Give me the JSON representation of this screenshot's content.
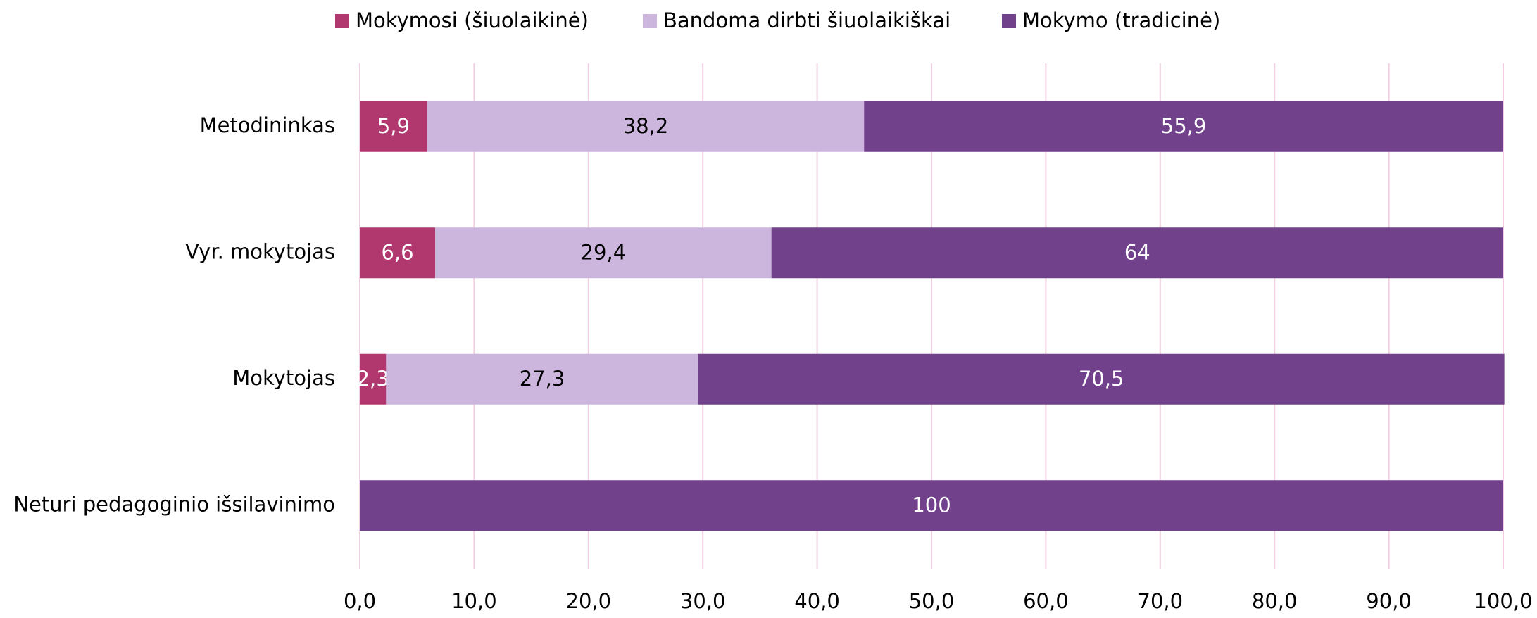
{
  "chart_data": {
    "type": "stacked_bar_horizontal",
    "categories": [
      "Metodininkas",
      "Vyr. mokytojas",
      "Mokytojas",
      "Neturi pedagoginio išsilavinimo"
    ],
    "series": [
      {
        "name": "Mokymosi (šiuolaikinė)",
        "color": "#b0386e",
        "label_color": "#ffffff",
        "values": [
          5.9,
          6.6,
          2.3,
          null
        ],
        "value_labels": [
          "5,9",
          "6,6",
          "2,3",
          null
        ]
      },
      {
        "name": "Bandoma dirbti šiuolaikiškai",
        "color": "#cdb6dd",
        "label_color": "#000000",
        "values": [
          38.2,
          29.4,
          27.3,
          null
        ],
        "value_labels": [
          "38,2",
          "29,4",
          "27,3",
          null
        ]
      },
      {
        "name": "Mokymo (tradicinė)",
        "color": "#71418c",
        "label_color": "#ffffff",
        "values": [
          55.9,
          64,
          70.5,
          100
        ],
        "value_labels": [
          "55,9",
          "64",
          "70,5",
          "100"
        ]
      }
    ],
    "xlim": [
      0,
      100
    ],
    "xticks": [
      {
        "value": 0,
        "label": "0,0"
      },
      {
        "value": 10,
        "label": "10,0"
      },
      {
        "value": 20,
        "label": "20,0"
      },
      {
        "value": 30,
        "label": "30,0"
      },
      {
        "value": 40,
        "label": "40,0"
      },
      {
        "value": 50,
        "label": "50,0"
      },
      {
        "value": 60,
        "label": "60,0"
      },
      {
        "value": 70,
        "label": "70,0"
      },
      {
        "value": 80,
        "label": "80,0"
      },
      {
        "value": 90,
        "label": "90,0"
      },
      {
        "value": 100,
        "label": "100,0"
      }
    ],
    "grid": true,
    "legend": "top"
  }
}
